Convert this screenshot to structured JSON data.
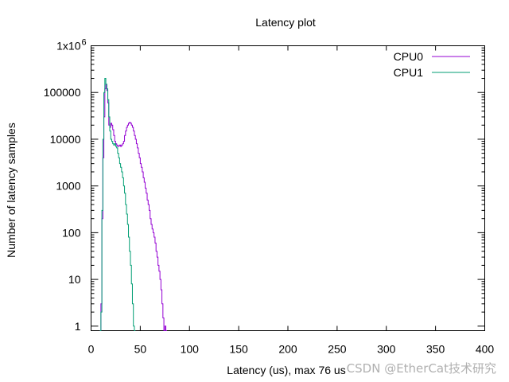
{
  "chart_data": {
    "type": "line",
    "title": "Latency plot",
    "xlabel": "Latency (us), max 76 us",
    "ylabel": "Number of latency samples",
    "xlim": [
      0,
      400
    ],
    "ylim": [
      0.8,
      1000000
    ],
    "yscale": "log",
    "grid": false,
    "legend_position": "top-right",
    "x_ticks": [
      0,
      50,
      100,
      150,
      200,
      250,
      300,
      350,
      400
    ],
    "x_tick_labels": [
      "0",
      "50",
      "100",
      "150",
      "200",
      "250",
      "300",
      "350",
      "400"
    ],
    "y_ticks": [
      1,
      10,
      100,
      1000,
      10000,
      100000,
      1000000
    ],
    "y_tick_labels": [
      "1",
      "10",
      "100",
      "1000",
      "10000",
      "100000",
      "1x10"
    ],
    "y_top_exponent": "6",
    "series": [
      {
        "name": "CPU0",
        "color": "#9400d3",
        "points": [
          [
            9,
            0.8
          ],
          [
            10,
            3
          ],
          [
            11,
            200
          ],
          [
            12,
            4000
          ],
          [
            13,
            30000
          ],
          [
            14,
            120000
          ],
          [
            15,
            150000
          ],
          [
            16,
            110000
          ],
          [
            17,
            60000
          ],
          [
            18,
            20000
          ],
          [
            19,
            18000
          ],
          [
            20,
            22000
          ],
          [
            21,
            20000
          ],
          [
            22,
            16000
          ],
          [
            23,
            12000
          ],
          [
            24,
            9000
          ],
          [
            25,
            8000
          ],
          [
            26,
            7500
          ],
          [
            27,
            7000
          ],
          [
            28,
            7200
          ],
          [
            29,
            7500
          ],
          [
            30,
            7000
          ],
          [
            31,
            7500
          ],
          [
            32,
            8000
          ],
          [
            33,
            9000
          ],
          [
            34,
            12000
          ],
          [
            35,
            15000
          ],
          [
            36,
            18000
          ],
          [
            37,
            20000
          ],
          [
            38,
            22000
          ],
          [
            39,
            23000
          ],
          [
            40,
            22000
          ],
          [
            41,
            20000
          ],
          [
            42,
            18000
          ],
          [
            43,
            15000
          ],
          [
            44,
            12000
          ],
          [
            45,
            10000
          ],
          [
            46,
            8000
          ],
          [
            47,
            6500
          ],
          [
            48,
            5000
          ],
          [
            49,
            4000
          ],
          [
            50,
            3000
          ],
          [
            51,
            2500
          ],
          [
            52,
            2000
          ],
          [
            53,
            1500
          ],
          [
            54,
            1200
          ],
          [
            55,
            900
          ],
          [
            56,
            700
          ],
          [
            57,
            500
          ],
          [
            58,
            400
          ],
          [
            59,
            300
          ],
          [
            60,
            200
          ],
          [
            61,
            150
          ],
          [
            62,
            120
          ],
          [
            63,
            100
          ],
          [
            64,
            80
          ],
          [
            65,
            60
          ],
          [
            66,
            40
          ],
          [
            67,
            30
          ],
          [
            68,
            20
          ],
          [
            69,
            15
          ],
          [
            70,
            10
          ],
          [
            71,
            6
          ],
          [
            72,
            3
          ],
          [
            73,
            1.5
          ],
          [
            74,
            0.8
          ],
          [
            75,
            1
          ],
          [
            76,
            0.8
          ]
        ]
      },
      {
        "name": "CPU1",
        "color": "#009e73",
        "points": [
          [
            9,
            0.8
          ],
          [
            10,
            2
          ],
          [
            11,
            300
          ],
          [
            12,
            10000
          ],
          [
            13,
            100000
          ],
          [
            14,
            200000
          ],
          [
            15,
            150000
          ],
          [
            16,
            120000
          ],
          [
            17,
            70000
          ],
          [
            18,
            30000
          ],
          [
            19,
            15000
          ],
          [
            20,
            10000
          ],
          [
            21,
            9000
          ],
          [
            22,
            8000
          ],
          [
            23,
            7500
          ],
          [
            24,
            8000
          ],
          [
            25,
            7000
          ],
          [
            26,
            6500
          ],
          [
            27,
            5000
          ],
          [
            28,
            4000
          ],
          [
            29,
            3000
          ],
          [
            30,
            2500
          ],
          [
            31,
            2000
          ],
          [
            32,
            1500
          ],
          [
            33,
            1000
          ],
          [
            34,
            700
          ],
          [
            35,
            400
          ],
          [
            36,
            250
          ],
          [
            37,
            150
          ],
          [
            38,
            80
          ],
          [
            39,
            40
          ],
          [
            40,
            20
          ],
          [
            41,
            8
          ],
          [
            42,
            3
          ],
          [
            43,
            1
          ],
          [
            44,
            0.8
          ]
        ]
      }
    ]
  },
  "watermark": "CSDN @EtherCat技术研究"
}
